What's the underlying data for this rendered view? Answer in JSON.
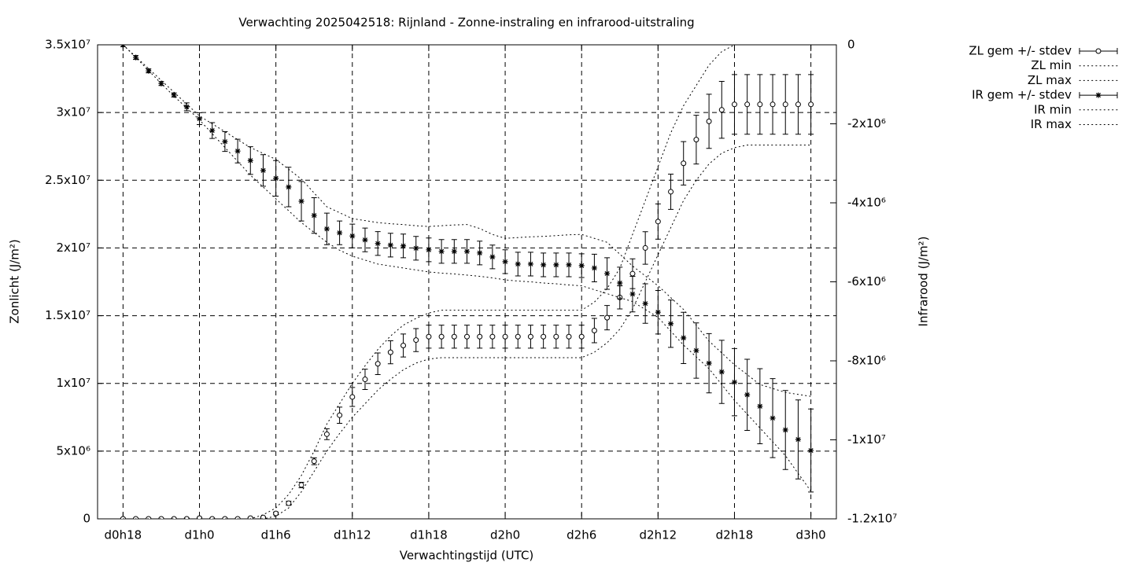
{
  "chart_data": {
    "type": "errorbar",
    "title": "Verwachting 2025042518: Rijnland - Zonne-instraling en infrarood-uitstraling",
    "xlabel": "Verwachtingstijd (UTC)",
    "ylabel": "Zonlicht (J/m²)",
    "y2label": "Infrarood (J/m²)",
    "categories": [
      "d0h18",
      null,
      null,
      null,
      null,
      null,
      "d1h0",
      null,
      null,
      null,
      null,
      null,
      "d1h6",
      null,
      null,
      null,
      null,
      null,
      "d1h12",
      null,
      null,
      null,
      null,
      null,
      "d1h18",
      null,
      null,
      null,
      null,
      null,
      "d2h0",
      null,
      null,
      null,
      null,
      null,
      "d2h6",
      null,
      null,
      null,
      null,
      null,
      "d2h12",
      null,
      null,
      null,
      null,
      null,
      "d2h18",
      null,
      null,
      null,
      null,
      null,
      "d3h0"
    ],
    "ylim": [
      0,
      35000000.0
    ],
    "yticks": [
      0,
      {
        "value": 5000000.0,
        "label": "5x10⁶"
      },
      {
        "value": 10000000.0,
        "label": "1x10⁷"
      },
      {
        "value": 15000000.0,
        "label": "1.5x10⁷"
      },
      {
        "value": 20000000.0,
        "label": "2x10⁷"
      },
      {
        "value": 25000000.0,
        "label": "2.5x10⁷"
      },
      {
        "value": 30000000.0,
        "label": "3x10⁷"
      },
      {
        "value": 35000000.0,
        "label": "3.5x10⁷"
      }
    ],
    "y2lim": [
      -12000000.0,
      0
    ],
    "y2ticks": [
      0,
      {
        "value": -2000000.0,
        "label": "-2x10⁶"
      },
      {
        "value": -4000000.0,
        "label": "-4x10⁶"
      },
      {
        "value": -6000000.0,
        "label": "-6x10⁶"
      },
      {
        "value": -8000000.0,
        "label": "-8x10⁶"
      },
      {
        "value": -10000000.0,
        "label": "-1x10⁷"
      },
      {
        "value": -12000000.0,
        "label": "-1.2x10⁷"
      }
    ],
    "grid": true,
    "legend": "top-right",
    "series": [
      {
        "name": "ZL gem +/- stdev",
        "color": "#000000",
        "style": "errorbar",
        "marker": "circle",
        "values": [
          0,
          0,
          0,
          0,
          0,
          0,
          50000.0,
          0,
          0,
          0,
          50000.0,
          100000.0,
          400000.0,
          1150000.0,
          2500000.0,
          4250000.0,
          6250000.0,
          7650000.0,
          9000000.0,
          10300000.0,
          11450000.0,
          12300000.0,
          12800000.0,
          13200000.0,
          13450000.0,
          13450000.0,
          13450000.0,
          13450000.0,
          13450000.0,
          13450000.0,
          13450000.0,
          13450000.0,
          13450000.0,
          13450000.0,
          13450000.0,
          13450000.0,
          13450000.0,
          13900000.0,
          14850000.0,
          16350000.0,
          18100000.0,
          20000000.0,
          21950000.0,
          24150000.0,
          26250000.0,
          28000000.0,
          29350000.0,
          30200000.0,
          30600000.0,
          30600000.0,
          30600000.0,
          30600000.0,
          30600000.0,
          30600000.0,
          30600000.0
        ],
        "errors": [
          50000.0,
          50000.0,
          50000.0,
          50000.0,
          50000.0,
          50000.0,
          50000.0,
          50000.0,
          50000.0,
          50000.0,
          50000.0,
          50000.0,
          100000.0,
          150000.0,
          200000.0,
          250000.0,
          400000.0,
          600000.0,
          700000.0,
          750000.0,
          800000.0,
          850000.0,
          850000.0,
          850000.0,
          850000.0,
          850000.0,
          850000.0,
          850000.0,
          850000.0,
          850000.0,
          850000.0,
          850000.0,
          850000.0,
          850000.0,
          850000.0,
          850000.0,
          850000.0,
          900000.0,
          900000.0,
          850000.0,
          1100000.0,
          1200000.0,
          1300000.0,
          1300000.0,
          1600000.0,
          1800000.0,
          2000000.0,
          2100000.0,
          2200000.0,
          2200000.0,
          2200000.0,
          2200000.0,
          2200000.0,
          2200000.0,
          2200000.0
        ]
      },
      {
        "name": "ZL min",
        "color": "#000000",
        "style": "dotted",
        "values": [
          0,
          0,
          0,
          0,
          0,
          0,
          0,
          0,
          0,
          0,
          0,
          0,
          200000.0,
          800000.0,
          2000000.0,
          3500000.0,
          5000000.0,
          6300000.0,
          7500000.0,
          8500000.0,
          9500000.0,
          10300000.0,
          11000000.0,
          11500000.0,
          11800000.0,
          11900000.0,
          11900000.0,
          11900000.0,
          11900000.0,
          11900000.0,
          11900000.0,
          11900000.0,
          11900000.0,
          11900000.0,
          11900000.0,
          11900000.0,
          11900000.0,
          12300000.0,
          13000000.0,
          14000000.0,
          15500000.0,
          17500000.0,
          19500000.0,
          21500000.0,
          23500000.0,
          25000000.0,
          26200000.0,
          27000000.0,
          27400000.0,
          27600000.0,
          27600000.0,
          27600000.0,
          27600000.0,
          27600000.0,
          27600000.0
        ]
      },
      {
        "name": "ZL max",
        "color": "#000000",
        "style": "dotted",
        "values": [
          0,
          0,
          0,
          0,
          0,
          0,
          0,
          0,
          0,
          0,
          0,
          300000.0,
          800000.0,
          1800000.0,
          3200000.0,
          5000000.0,
          7000000.0,
          8500000.0,
          10000000.0,
          11300000.0,
          12500000.0,
          13500000.0,
          14300000.0,
          14800000.0,
          15200000.0,
          15400000.0,
          15400000.0,
          15400000.0,
          15400000.0,
          15400000.0,
          15400000.0,
          15400000.0,
          15400000.0,
          15400000.0,
          15400000.0,
          15400000.0,
          15400000.0,
          16000000.0,
          17000000.0,
          18500000.0,
          21000000.0,
          23500000.0,
          26000000.0,
          28500000.0,
          30500000.0,
          32000000.0,
          33500000.0,
          34500000.0,
          35000000.0,
          null,
          null,
          null,
          null,
          null,
          null
        ]
      },
      {
        "name": "IR gem +/- stdev",
        "color": "#000000",
        "style": "errorbar",
        "marker": "star",
        "axis": "y2",
        "values": [
          0,
          -320000.0,
          -660000.0,
          -980000.0,
          -1270000.0,
          -1570000.0,
          -1870000.0,
          -2170000.0,
          -2450000.0,
          -2690000.0,
          -2930000.0,
          -3180000.0,
          -3380000.0,
          -3600000.0,
          -3960000.0,
          -4320000.0,
          -4660000.0,
          -4760000.0,
          -4840000.0,
          -4940000.0,
          -5030000.0,
          -5070000.0,
          -5090000.0,
          -5150000.0,
          -5190000.0,
          -5230000.0,
          -5230000.0,
          -5230000.0,
          -5270000.0,
          -5370000.0,
          -5490000.0,
          -5550000.0,
          -5550000.0,
          -5570000.0,
          -5570000.0,
          -5570000.0,
          -5590000.0,
          -5650000.0,
          -5790000.0,
          -6030000.0,
          -6310000.0,
          -6550000.0,
          -6770000.0,
          -7060000.0,
          -7420000.0,
          -7740000.0,
          -8060000.0,
          -8280000.0,
          -8540000.0,
          -8860000.0,
          -9150000.0,
          -9450000.0,
          -9750000.0,
          -9990000.0,
          -10270000.0
        ],
        "errors": [
          50000.0,
          50000.0,
          50000.0,
          50000.0,
          50000.0,
          100000.0,
          150000.0,
          200000.0,
          250000.0,
          300000.0,
          350000.0,
          400000.0,
          450000.0,
          500000.0,
          500000.0,
          450000.0,
          400000.0,
          300000.0,
          300000.0,
          300000.0,
          300000.0,
          300000.0,
          300000.0,
          300000.0,
          300000.0,
          300000.0,
          300000.0,
          300000.0,
          300000.0,
          300000.0,
          300000.0,
          300000.0,
          300000.0,
          300000.0,
          300000.0,
          300000.0,
          300000.0,
          350000.0,
          400000.0,
          400000.0,
          450000.0,
          500000.0,
          550000.0,
          600000.0,
          650000.0,
          700000.0,
          750000.0,
          800000.0,
          850000.0,
          900000.0,
          950000.0,
          1000000.0,
          1000000.0,
          1000000.0,
          1050000.0
        ]
      },
      {
        "name": "IR min",
        "color": "#000000",
        "style": "dotted",
        "axis": "y2",
        "values": [
          0,
          -320000.0,
          -650000.0,
          -980000.0,
          -1300000.0,
          -1600000.0,
          -1900000.0,
          -2250000.0,
          -2600000.0,
          -2950000.0,
          -3300000.0,
          -3600000.0,
          -3900000.0,
          -4200000.0,
          -4500000.0,
          -4750000.0,
          -5000000.0,
          -5200000.0,
          -5350000.0,
          -5450000.0,
          -5550000.0,
          -5600000.0,
          -5650000.0,
          -5700000.0,
          -5750000.0,
          -5780000.0,
          -5800000.0,
          -5830000.0,
          -5860000.0,
          -5900000.0,
          -5950000.0,
          -5980000.0,
          -6000000.0,
          -6030000.0,
          -6050000.0,
          -6080000.0,
          -6100000.0,
          -6200000.0,
          -6300000.0,
          -6400000.0,
          -6500000.0,
          -6700000.0,
          -6900000.0,
          -7250000.0,
          -7600000.0,
          -7900000.0,
          -8200000.0,
          -8600000.0,
          -9000000.0,
          -9350000.0,
          -9700000.0,
          -10050000.0,
          -10400000.0,
          -10850000.0,
          -11300000.0
        ]
      },
      {
        "name": "IR max",
        "color": "#000000",
        "style": "dotted",
        "axis": "y2",
        "values": [
          0,
          -300000.0,
          -600000.0,
          -900000.0,
          -1200000.0,
          -1500000.0,
          -1800000.0,
          -2000000.0,
          -2200000.0,
          -2400000.0,
          -2600000.0,
          -2750000.0,
          -2900000.0,
          -3150000.0,
          -3400000.0,
          -3750000.0,
          -4100000.0,
          -4250000.0,
          -4400000.0,
          -4450000.0,
          -4500000.0,
          -4530000.0,
          -4550000.0,
          -4580000.0,
          -4600000.0,
          -4580000.0,
          -4560000.0,
          -4550000.0,
          -4650000.0,
          -4800000.0,
          -4900000.0,
          -4880000.0,
          -4860000.0,
          -4850000.0,
          -4830000.0,
          -4810000.0,
          -4800000.0,
          -4900000.0,
          -5000000.0,
          -5300000.0,
          -5600000.0,
          -5850000.0,
          -6100000.0,
          -6400000.0,
          -6700000.0,
          -7100000.0,
          -7500000.0,
          -7800000.0,
          -8100000.0,
          -8350000.0,
          -8600000.0,
          -8700000.0,
          -8800000.0,
          -8850000.0,
          -8900000.0
        ]
      }
    ]
  }
}
